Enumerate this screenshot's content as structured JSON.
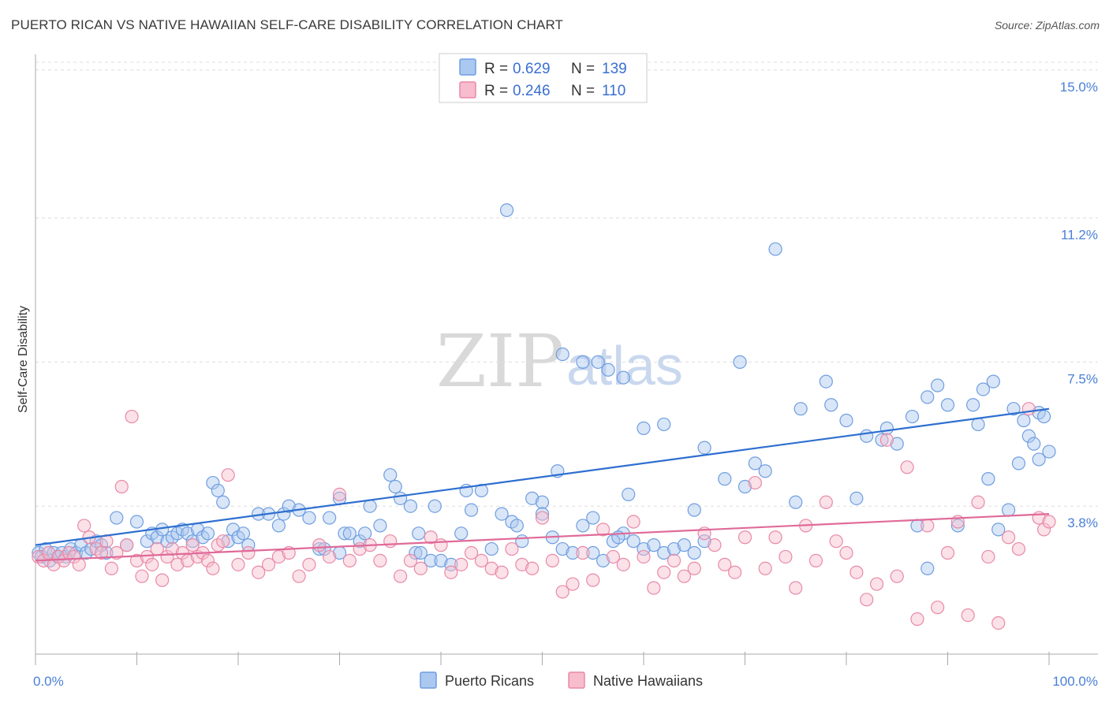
{
  "title": "PUERTO RICAN VS NATIVE HAWAIIAN SELF-CARE DISABILITY CORRELATION CHART",
  "source": "Source: ZipAtlas.com",
  "watermark": {
    "part1": "ZIP",
    "part2": "atlas"
  },
  "legend": {
    "r_label": "R =",
    "n_label": "N =",
    "items": [
      {
        "name": "Puerto Ricans",
        "r": "0.629",
        "n": "139",
        "fill": "#aac8f0",
        "stroke": "#6f9ee0"
      },
      {
        "name": "Native Hawaiians",
        "r": "0.246",
        "n": "110",
        "fill": "#f7bccd",
        "stroke": "#e88aa8"
      }
    ]
  },
  "chart_data": {
    "type": "scatter",
    "title": "PUERTO RICAN VS NATIVE HAWAIIAN SELF-CARE DISABILITY CORRELATION CHART",
    "xlabel": "",
    "ylabel": "Self-Care Disability",
    "xlim": [
      0,
      100
    ],
    "ylim": [
      0,
      15.4
    ],
    "x_tick_labels": [
      {
        "value": 0,
        "label": "0.0%"
      },
      {
        "value": 100,
        "label": "100.0%"
      }
    ],
    "y_tick_labels": [
      {
        "value": 3.8,
        "label": "3.8%"
      },
      {
        "value": 7.5,
        "label": "7.5%"
      },
      {
        "value": 11.2,
        "label": "11.2%"
      },
      {
        "value": 15.0,
        "label": "15.0%"
      }
    ],
    "series": [
      {
        "name": "Puerto Ricans",
        "color": "#6f9ee0",
        "line_color": "#2e6fd0",
        "trend": {
          "x": [
            0,
            100
          ],
          "y": [
            2.8,
            6.3
          ]
        },
        "points": [
          [
            0.3,
            2.6
          ],
          [
            0.6,
            2.5
          ],
          [
            1.0,
            2.7
          ],
          [
            1.4,
            2.4
          ],
          [
            1.8,
            2.6
          ],
          [
            2.2,
            2.5
          ],
          [
            2.6,
            2.6
          ],
          [
            3.0,
            2.5
          ],
          [
            3.5,
            2.7
          ],
          [
            4.0,
            2.6
          ],
          [
            4.5,
            2.8
          ],
          [
            5.0,
            2.6
          ],
          [
            5.5,
            2.7
          ],
          [
            6.0,
            2.9
          ],
          [
            6.5,
            2.8
          ],
          [
            7.0,
            2.6
          ],
          [
            8.0,
            3.5
          ],
          [
            9.0,
            2.8
          ],
          [
            10.0,
            3.4
          ],
          [
            11.0,
            2.9
          ],
          [
            11.5,
            3.1
          ],
          [
            12.0,
            3.0
          ],
          [
            12.5,
            3.2
          ],
          [
            13.0,
            2.9
          ],
          [
            13.5,
            3.0
          ],
          [
            14.0,
            3.1
          ],
          [
            14.5,
            3.2
          ],
          [
            15.0,
            3.1
          ],
          [
            15.5,
            2.9
          ],
          [
            16.0,
            3.2
          ],
          [
            16.5,
            3.0
          ],
          [
            17.0,
            3.1
          ],
          [
            17.5,
            4.4
          ],
          [
            18.0,
            4.2
          ],
          [
            18.5,
            3.9
          ],
          [
            19.0,
            2.9
          ],
          [
            19.5,
            3.2
          ],
          [
            20.0,
            3.0
          ],
          [
            20.5,
            3.1
          ],
          [
            21.0,
            2.8
          ],
          [
            22.0,
            3.6
          ],
          [
            23.0,
            3.6
          ],
          [
            24.0,
            3.3
          ],
          [
            24.5,
            3.6
          ],
          [
            25.0,
            3.8
          ],
          [
            26.0,
            3.7
          ],
          [
            27.0,
            3.5
          ],
          [
            28.0,
            2.7
          ],
          [
            28.5,
            2.7
          ],
          [
            29.0,
            3.5
          ],
          [
            30.0,
            2.6
          ],
          [
            30.5,
            3.1
          ],
          [
            31.0,
            3.1
          ],
          [
            32.0,
            2.9
          ],
          [
            32.5,
            3.1
          ],
          [
            33.0,
            3.8
          ],
          [
            34.0,
            3.3
          ],
          [
            35.0,
            4.6
          ],
          [
            36.0,
            4.0
          ],
          [
            37.0,
            3.8
          ],
          [
            37.5,
            2.6
          ],
          [
            38.0,
            2.6
          ],
          [
            39.0,
            2.4
          ],
          [
            40.0,
            2.4
          ],
          [
            41.0,
            2.3
          ],
          [
            42.0,
            3.1
          ],
          [
            43.0,
            3.7
          ],
          [
            44.0,
            4.2
          ],
          [
            45.0,
            2.7
          ],
          [
            46.0,
            3.6
          ],
          [
            47.0,
            3.4
          ],
          [
            48.0,
            2.9
          ],
          [
            49.0,
            4.0
          ],
          [
            50.0,
            3.9
          ],
          [
            51.0,
            3.0
          ],
          [
            52.0,
            2.7
          ],
          [
            53.0,
            2.6
          ],
          [
            54.0,
            3.3
          ],
          [
            55.0,
            2.6
          ],
          [
            56.0,
            2.4
          ],
          [
            57.0,
            2.9
          ],
          [
            58.0,
            3.1
          ],
          [
            59.0,
            2.9
          ],
          [
            60.0,
            2.7
          ],
          [
            61.0,
            2.8
          ],
          [
            62.0,
            2.6
          ],
          [
            63.0,
            2.7
          ],
          [
            64.0,
            2.8
          ],
          [
            65.0,
            2.6
          ],
          [
            66.0,
            2.9
          ],
          [
            30.0,
            4.0
          ],
          [
            35.5,
            4.3
          ],
          [
            37.8,
            3.1
          ],
          [
            39.4,
            3.8
          ],
          [
            42.5,
            4.2
          ],
          [
            47.5,
            3.3
          ],
          [
            51.5,
            4.7
          ],
          [
            55.0,
            3.5
          ],
          [
            57.5,
            3.0
          ],
          [
            58.5,
            4.1
          ],
          [
            65.0,
            3.7
          ],
          [
            68.0,
            4.5
          ],
          [
            70.0,
            4.3
          ],
          [
            72.0,
            4.7
          ],
          [
            75.0,
            3.9
          ],
          [
            78.0,
            7.0
          ],
          [
            81.0,
            4.0
          ],
          [
            84.0,
            5.8
          ],
          [
            87.0,
            3.3
          ],
          [
            88.0,
            2.2
          ],
          [
            91.0,
            3.3
          ],
          [
            93.0,
            5.9
          ],
          [
            94.0,
            4.5
          ],
          [
            95.0,
            3.2
          ],
          [
            96.0,
            3.7
          ],
          [
            97.0,
            4.9
          ],
          [
            98.0,
            5.6
          ],
          [
            99.0,
            6.2
          ],
          [
            99.5,
            6.1
          ],
          [
            100.0,
            5.2
          ],
          [
            52.0,
            7.7
          ],
          [
            54.0,
            7.5
          ],
          [
            55.5,
            7.5
          ],
          [
            56.5,
            7.3
          ],
          [
            58.0,
            7.1
          ],
          [
            60.0,
            5.8
          ],
          [
            62.0,
            5.9
          ],
          [
            66.0,
            5.3
          ],
          [
            69.5,
            7.5
          ],
          [
            71.0,
            4.9
          ],
          [
            75.5,
            6.3
          ],
          [
            78.5,
            6.4
          ],
          [
            80.0,
            6.0
          ],
          [
            82.0,
            5.6
          ],
          [
            83.5,
            5.5
          ],
          [
            85.0,
            5.4
          ],
          [
            86.5,
            6.1
          ],
          [
            88.0,
            6.6
          ],
          [
            89.0,
            6.9
          ],
          [
            90.0,
            6.4
          ],
          [
            92.5,
            6.4
          ],
          [
            93.5,
            6.8
          ],
          [
            94.5,
            7.0
          ],
          [
            96.5,
            6.3
          ],
          [
            97.5,
            6.0
          ],
          [
            98.5,
            5.4
          ],
          [
            99.0,
            5.0
          ],
          [
            46.5,
            11.4
          ],
          [
            50.0,
            3.6
          ],
          [
            73.0,
            10.4
          ]
        ]
      },
      {
        "name": "Native Hawaiians",
        "color": "#e88aa8",
        "line_color": "#e06a98",
        "trend": {
          "x": [
            0,
            100
          ],
          "y": [
            2.4,
            3.6
          ]
        },
        "points": [
          [
            0.3,
            2.5
          ],
          [
            0.8,
            2.4
          ],
          [
            1.3,
            2.6
          ],
          [
            1.8,
            2.3
          ],
          [
            2.3,
            2.5
          ],
          [
            2.8,
            2.4
          ],
          [
            3.3,
            2.6
          ],
          [
            3.8,
            2.5
          ],
          [
            4.3,
            2.3
          ],
          [
            4.8,
            3.3
          ],
          [
            5.3,
            3.0
          ],
          [
            6.0,
            2.7
          ],
          [
            6.5,
            2.6
          ],
          [
            7.0,
            2.9
          ],
          [
            7.5,
            2.2
          ],
          [
            8.0,
            2.6
          ],
          [
            8.5,
            4.3
          ],
          [
            9.0,
            2.8
          ],
          [
            9.5,
            6.1
          ],
          [
            10.0,
            2.4
          ],
          [
            10.5,
            2.0
          ],
          [
            11.0,
            2.5
          ],
          [
            11.5,
            2.3
          ],
          [
            12.0,
            2.7
          ],
          [
            12.5,
            1.9
          ],
          [
            13.0,
            2.5
          ],
          [
            13.5,
            2.7
          ],
          [
            14.0,
            2.3
          ],
          [
            14.5,
            2.6
          ],
          [
            15.0,
            2.4
          ],
          [
            15.5,
            2.8
          ],
          [
            16.0,
            2.5
          ],
          [
            16.5,
            2.6
          ],
          [
            17.0,
            2.4
          ],
          [
            17.5,
            2.2
          ],
          [
            18.0,
            2.8
          ],
          [
            18.5,
            2.9
          ],
          [
            19.0,
            4.6
          ],
          [
            20.0,
            2.3
          ],
          [
            21.0,
            2.6
          ],
          [
            22.0,
            2.1
          ],
          [
            23.0,
            2.3
          ],
          [
            24.0,
            2.5
          ],
          [
            25.0,
            2.6
          ],
          [
            26.0,
            2.0
          ],
          [
            27.0,
            2.3
          ],
          [
            28.0,
            2.8
          ],
          [
            29.0,
            2.5
          ],
          [
            30.0,
            4.1
          ],
          [
            31.0,
            2.4
          ],
          [
            32.0,
            2.7
          ],
          [
            33.0,
            2.8
          ],
          [
            34.0,
            2.4
          ],
          [
            35.0,
            2.9
          ],
          [
            36.0,
            2.0
          ],
          [
            37.0,
            2.4
          ],
          [
            38.0,
            2.2
          ],
          [
            39.0,
            3.0
          ],
          [
            40.0,
            2.8
          ],
          [
            41.0,
            2.1
          ],
          [
            42.0,
            2.3
          ],
          [
            43.0,
            2.6
          ],
          [
            44.0,
            2.4
          ],
          [
            45.0,
            2.2
          ],
          [
            46.0,
            2.1
          ],
          [
            47.0,
            2.7
          ],
          [
            48.0,
            2.3
          ],
          [
            49.0,
            2.2
          ],
          [
            50.0,
            3.5
          ],
          [
            51.0,
            2.4
          ],
          [
            52.0,
            1.6
          ],
          [
            53.0,
            1.8
          ],
          [
            54.0,
            2.6
          ],
          [
            55.0,
            1.9
          ],
          [
            56.0,
            3.2
          ],
          [
            57.0,
            2.5
          ],
          [
            58.0,
            2.3
          ],
          [
            59.0,
            3.4
          ],
          [
            60.0,
            2.5
          ],
          [
            61.0,
            1.7
          ],
          [
            62.0,
            2.1
          ],
          [
            63.0,
            2.4
          ],
          [
            64.0,
            2.0
          ],
          [
            65.0,
            2.2
          ],
          [
            66.0,
            3.1
          ],
          [
            67.0,
            2.8
          ],
          [
            68.0,
            2.3
          ],
          [
            69.0,
            2.1
          ],
          [
            70.0,
            3.0
          ],
          [
            71.0,
            4.4
          ],
          [
            72.0,
            2.2
          ],
          [
            73.0,
            3.0
          ],
          [
            74.0,
            2.5
          ],
          [
            75.0,
            1.7
          ],
          [
            76.0,
            3.3
          ],
          [
            77.0,
            2.4
          ],
          [
            78.0,
            3.9
          ],
          [
            79.0,
            2.9
          ],
          [
            80.0,
            2.6
          ],
          [
            81.0,
            2.1
          ],
          [
            82.0,
            1.4
          ],
          [
            83.0,
            1.8
          ],
          [
            84.0,
            5.5
          ],
          [
            85.0,
            2.0
          ],
          [
            86.0,
            4.8
          ],
          [
            87.0,
            0.9
          ],
          [
            88.0,
            3.3
          ],
          [
            89.0,
            1.2
          ],
          [
            90.0,
            2.6
          ],
          [
            91.0,
            3.4
          ],
          [
            92.0,
            1.0
          ],
          [
            93.0,
            3.9
          ],
          [
            94.0,
            2.5
          ],
          [
            95.0,
            0.8
          ],
          [
            96.0,
            3.0
          ],
          [
            97.0,
            2.7
          ],
          [
            98.0,
            6.3
          ],
          [
            99.0,
            3.5
          ],
          [
            99.5,
            3.2
          ],
          [
            100.0,
            3.4
          ]
        ]
      }
    ]
  }
}
